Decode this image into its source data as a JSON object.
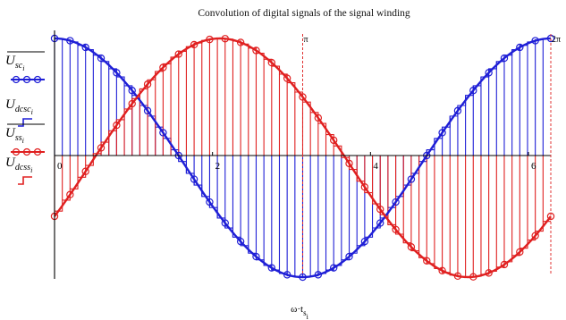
{
  "chart_data": {
    "type": "line",
    "title": "Convolution of digital signals of the signal winding",
    "xlabel": "ω·t",
    "xlabel_sub": "s",
    "xlabel_subsub": "i",
    "xlim": [
      0,
      6.2832
    ],
    "ylim": [
      -1.05,
      1.05
    ],
    "x_ticks": [
      "0",
      "2",
      "4",
      "6"
    ],
    "x_tick_values": [
      0,
      2,
      4,
      6
    ],
    "markers": [
      {
        "label": "π",
        "x": 3.1416
      },
      {
        "label": "2π",
        "x": 6.2832
      }
    ],
    "steps_per_period": 64,
    "series": [
      {
        "name": "U",
        "sub": "sc",
        "subsub": "i",
        "overline": true,
        "kind": "sine-with-markers",
        "color": "#1f1fd6",
        "amplitude": 1.0,
        "phase_deg": 90
      },
      {
        "name": "U",
        "sub": "dcsc",
        "subsub": "i",
        "overline": false,
        "kind": "digital-steps",
        "color": "#1f1fd6",
        "amplitude": 1.0,
        "phase_deg": 90
      },
      {
        "name": "U",
        "sub": "ss",
        "subsub": "i",
        "overline": true,
        "kind": "sine-with-markers",
        "color": "#e02020",
        "amplitude": 1.0,
        "phase_deg": -30
      },
      {
        "name": "U",
        "sub": "dcss",
        "subsub": "i",
        "overline": false,
        "kind": "digital-steps",
        "color": "#e02020",
        "amplitude": 1.0,
        "phase_deg": -30
      }
    ]
  }
}
